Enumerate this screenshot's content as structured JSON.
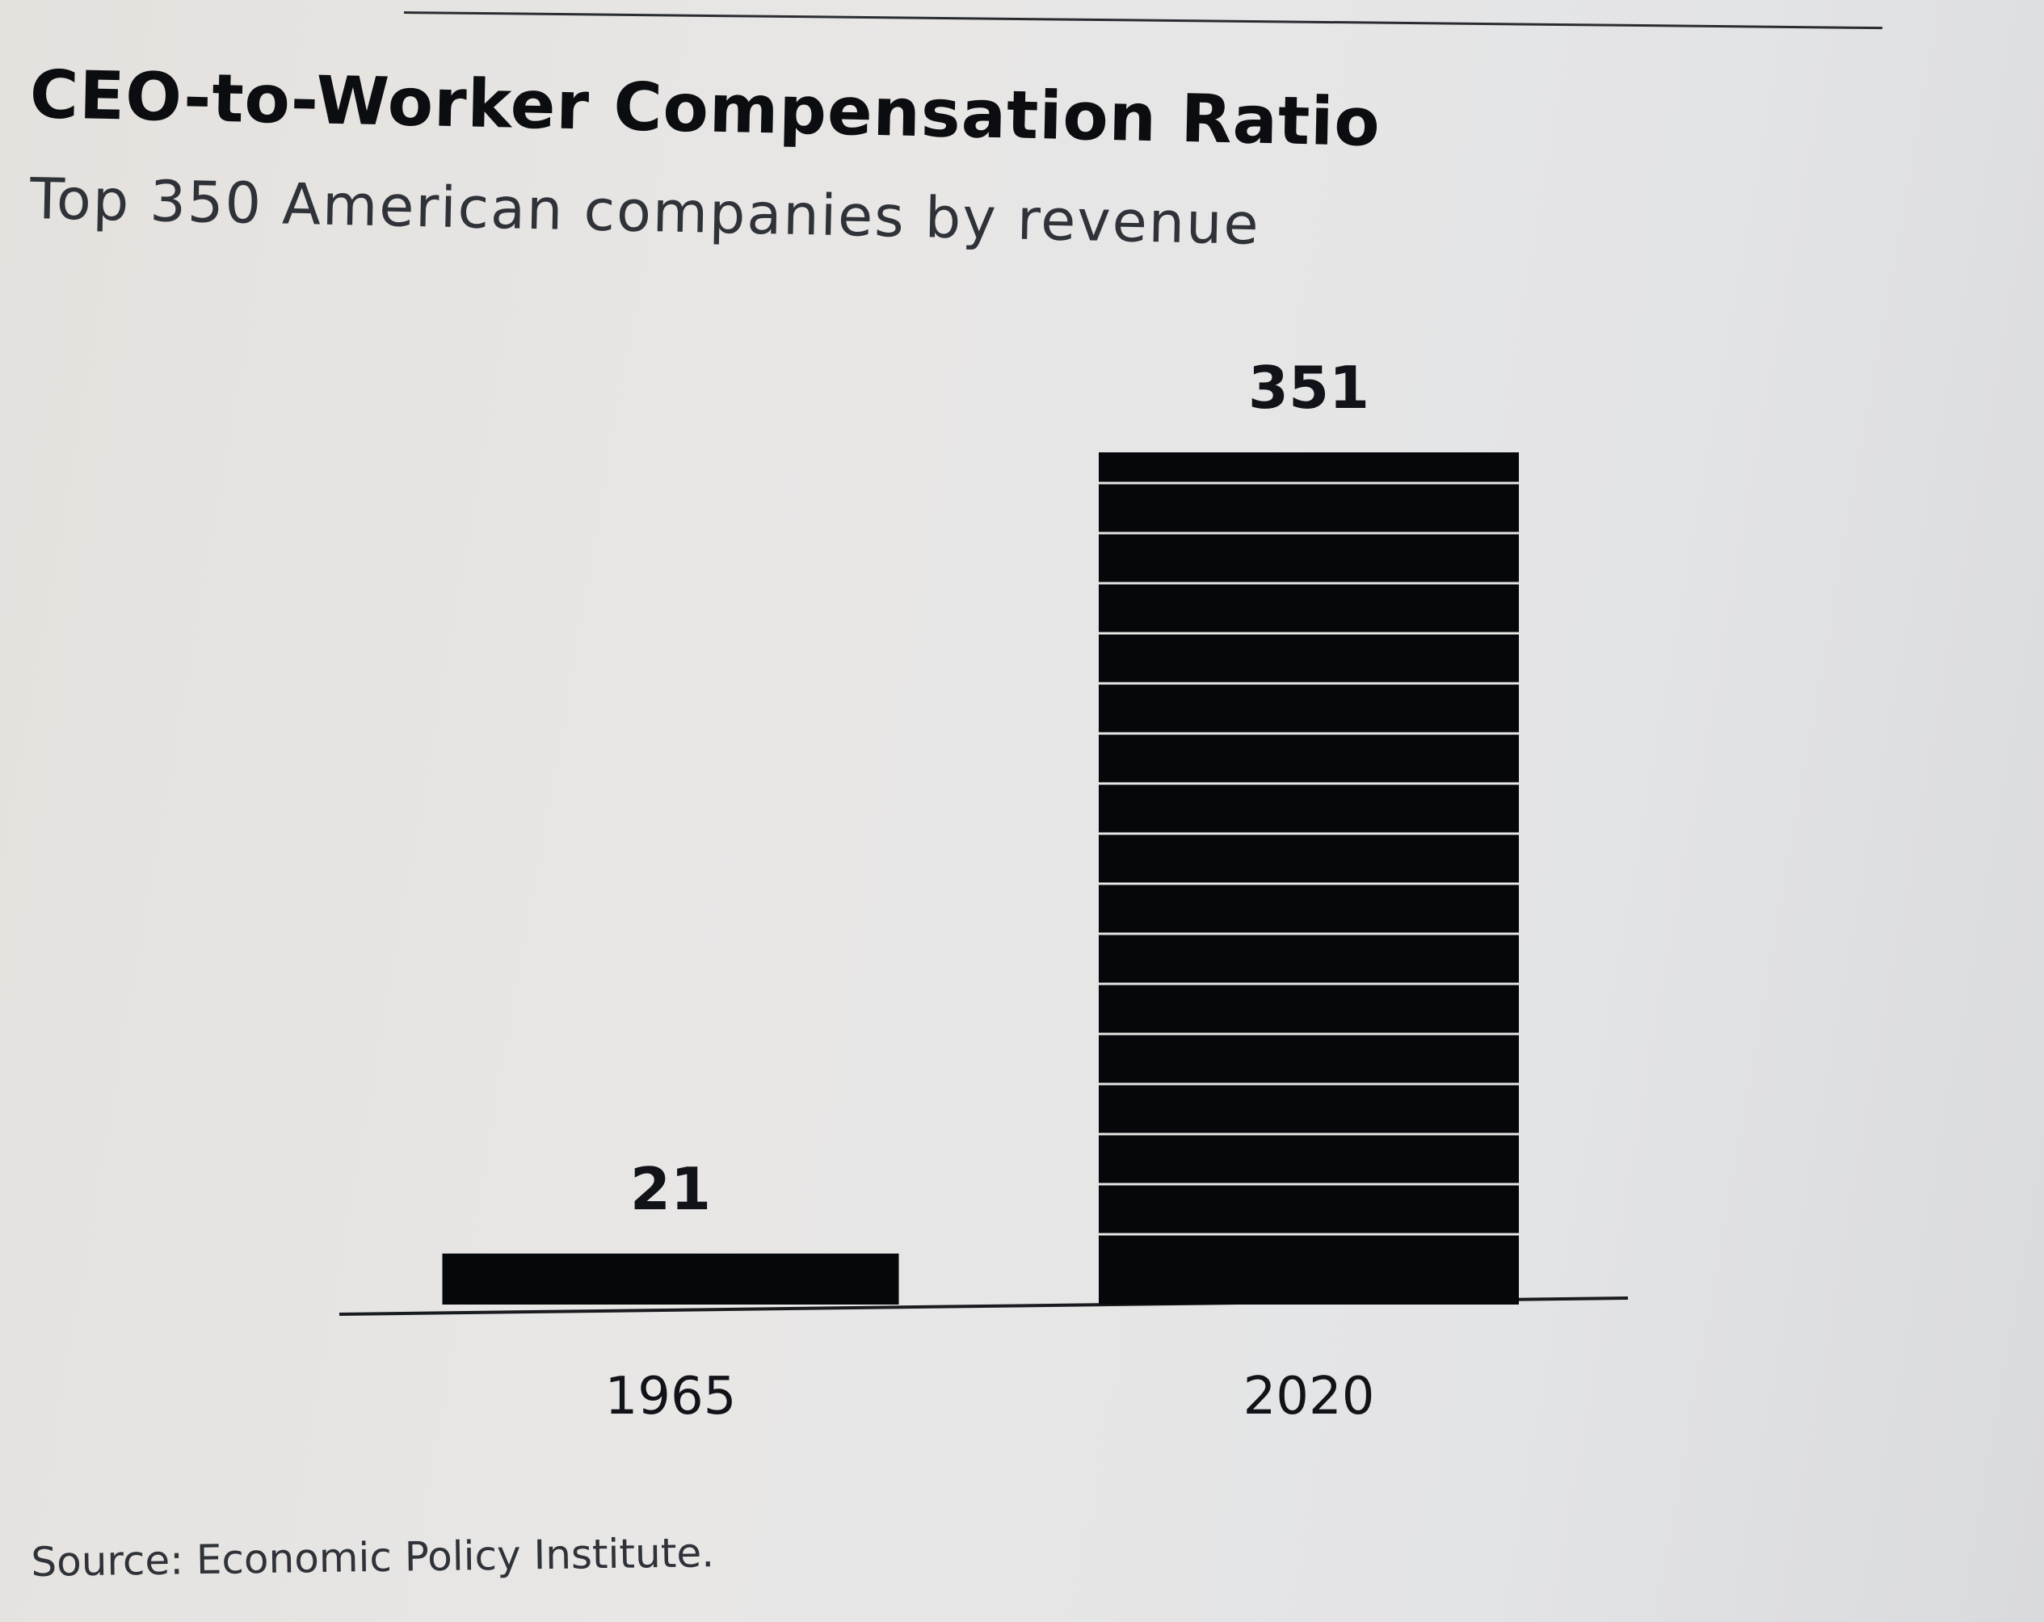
{
  "chart_data": {
    "type": "bar",
    "title": "CEO-to-Worker Compensation Ratio",
    "subtitle": "Top 350 American companies by revenue",
    "categories": [
      "1965",
      "2020"
    ],
    "values": [
      21,
      351
    ],
    "data_labels": [
      "21",
      "351"
    ],
    "ylim": [
      0,
      351
    ],
    "grid": false,
    "legend": "none",
    "source": "Source: Economic Policy Institute.",
    "colors": {
      "bar": "#06070b",
      "stripe": "#e6e6e6",
      "axis": "#1a1b1f",
      "text": "#111318"
    }
  }
}
